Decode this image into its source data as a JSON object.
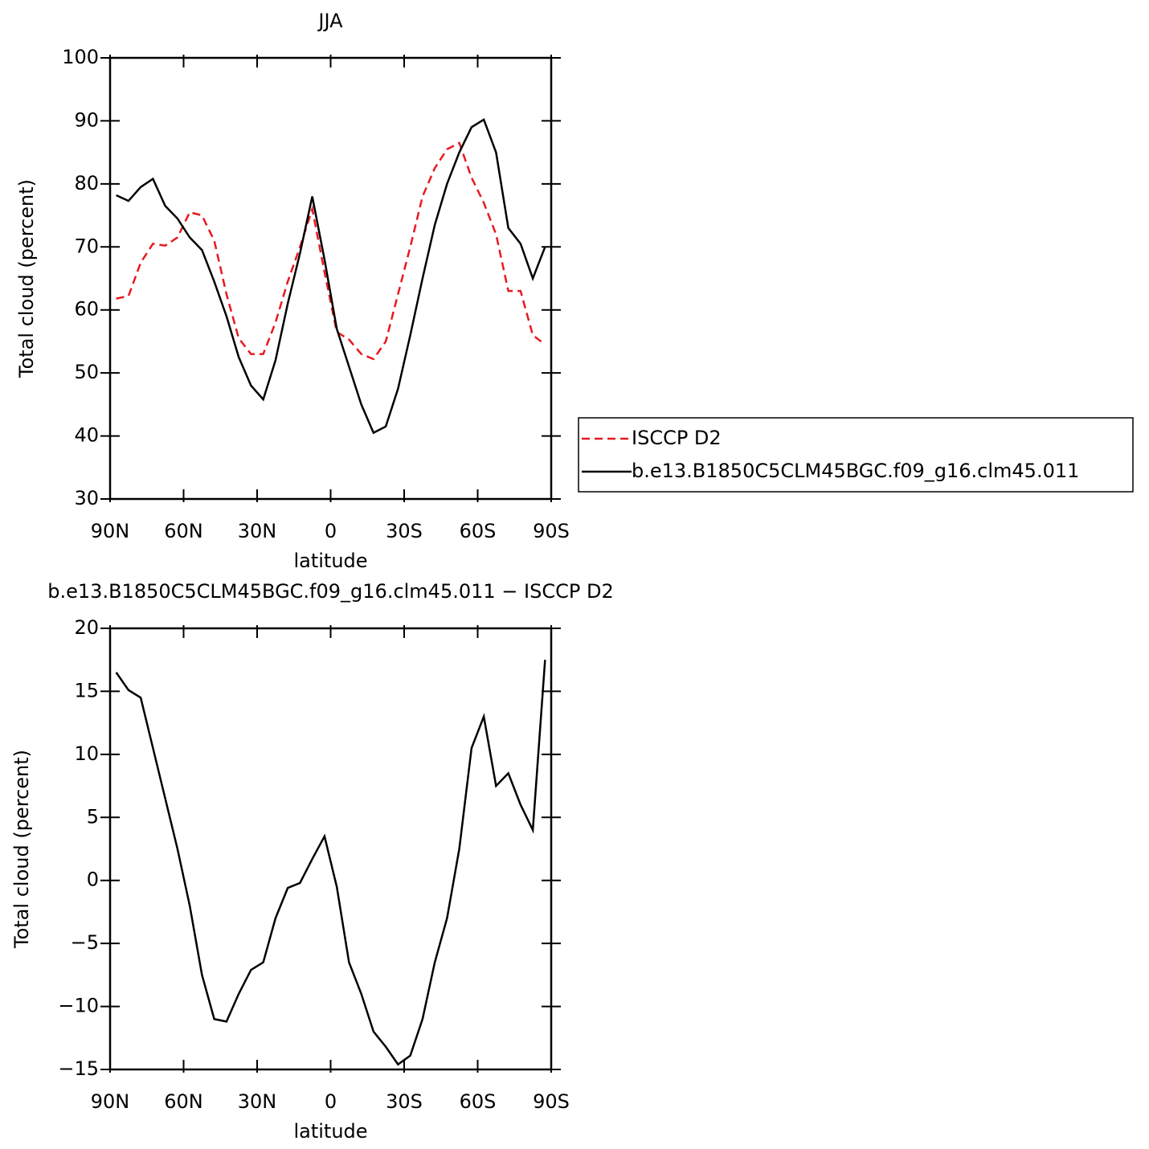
{
  "chart_data": [
    {
      "type": "line",
      "title": "JJA",
      "xlabel": "latitude",
      "ylabel": "Total cloud (percent)",
      "x": [
        87.5,
        82.5,
        77.5,
        72.5,
        67.5,
        62.5,
        57.5,
        52.5,
        47.5,
        42.5,
        37.5,
        32.5,
        27.5,
        22.5,
        17.5,
        12.5,
        7.5,
        2.5,
        -2.5,
        -7.5,
        -12.5,
        -17.5,
        -22.5,
        -27.5,
        -32.5,
        -37.5,
        -42.5,
        -47.5,
        -52.5,
        -57.5,
        -62.5,
        -67.5,
        -72.5,
        -77.5,
        -82.5,
        -87.5
      ],
      "series": [
        {
          "name": "ISCCP D2",
          "color": "#e8191f",
          "dashed": true,
          "values": [
            61.8,
            62.2,
            67.5,
            70.5,
            70.2,
            71.5,
            75.5,
            75,
            71,
            62.5,
            55.5,
            53,
            53,
            58,
            64.5,
            70,
            76,
            66,
            56.5,
            55.3,
            53,
            52.2,
            55,
            62.5,
            70,
            78,
            82.5,
            85.5,
            86.5,
            81,
            77,
            72,
            63,
            63,
            56,
            54.5
          ]
        },
        {
          "name": "b.e13.B1850C5CLM45BGC.f09_g16.clm45.011",
          "color": "#000000",
          "dashed": false,
          "values": [
            78.2,
            77.3,
            79.5,
            80.8,
            76.5,
            74.5,
            71.5,
            69.5,
            64.5,
            59,
            52.5,
            48,
            45.8,
            52,
            61,
            69,
            78,
            68,
            57,
            51,
            45,
            40.5,
            41.5,
            47.5,
            56,
            65,
            73.5,
            80,
            85,
            89,
            90.2,
            85,
            73,
            70.5,
            65,
            70
          ]
        }
      ],
      "xlim": [
        90,
        -90
      ],
      "xticks": [
        {
          "value": 90,
          "label": "90N"
        },
        {
          "value": 60,
          "label": "60N"
        },
        {
          "value": 30,
          "label": "30N"
        },
        0,
        {
          "value": -30,
          "label": "30S"
        },
        {
          "value": -60,
          "label": "60S"
        },
        {
          "value": -90,
          "label": "90S"
        }
      ],
      "ylim": [
        30,
        100
      ],
      "yticks": [
        30,
        40,
        50,
        60,
        70,
        80,
        90,
        100
      ],
      "legend": "right"
    },
    {
      "type": "line",
      "title": "b.e13.B1850C5CLM45BGC.f09_g16.clm45.011 − ISCCP D2",
      "xlabel": "latitude",
      "ylabel": "Total cloud (percent)",
      "x": [
        87.5,
        82.5,
        77.5,
        72.5,
        67.5,
        62.5,
        57.5,
        52.5,
        47.5,
        42.5,
        37.5,
        32.5,
        27.5,
        22.5,
        17.5,
        12.5,
        7.5,
        2.5,
        -2.5,
        -7.5,
        -12.5,
        -17.5,
        -22.5,
        -27.5,
        -32.5,
        -37.5,
        -42.5,
        -47.5,
        -52.5,
        -57.5,
        -62.5,
        -67.5,
        -72.5,
        -77.5,
        -82.5,
        -87.5
      ],
      "series": [
        {
          "color": "#000000",
          "dashed": false,
          "values": [
            16.5,
            15.1,
            14.5,
            10.5,
            6.5,
            2.5,
            -2,
            -7.5,
            -11,
            -11.2,
            -9,
            -7.1,
            -6.5,
            -3,
            -0.6,
            -0.2,
            1.7,
            3.5,
            -0.5,
            -6.5,
            -9,
            -12,
            -13.2,
            -14.6,
            -13.9,
            -11,
            -6.5,
            -3,
            2.5,
            10.5,
            13,
            7.5,
            8.5,
            6,
            4,
            17.5
          ]
        }
      ],
      "xlim": [
        90,
        -90
      ],
      "xticks": [
        {
          "value": 90,
          "label": "90N"
        },
        {
          "value": 60,
          "label": "60N"
        },
        {
          "value": 30,
          "label": "30N"
        },
        0,
        {
          "value": -30,
          "label": "30S"
        },
        {
          "value": -60,
          "label": "60S"
        },
        {
          "value": -90,
          "label": "90S"
        }
      ],
      "ylim": [
        -15,
        20
      ],
      "yticks": [
        {
          "value": -15,
          "label": "−15"
        },
        {
          "value": -10,
          "label": "−10"
        },
        {
          "value": -5,
          "label": "−5"
        },
        0,
        5,
        10,
        15,
        20
      ]
    }
  ]
}
